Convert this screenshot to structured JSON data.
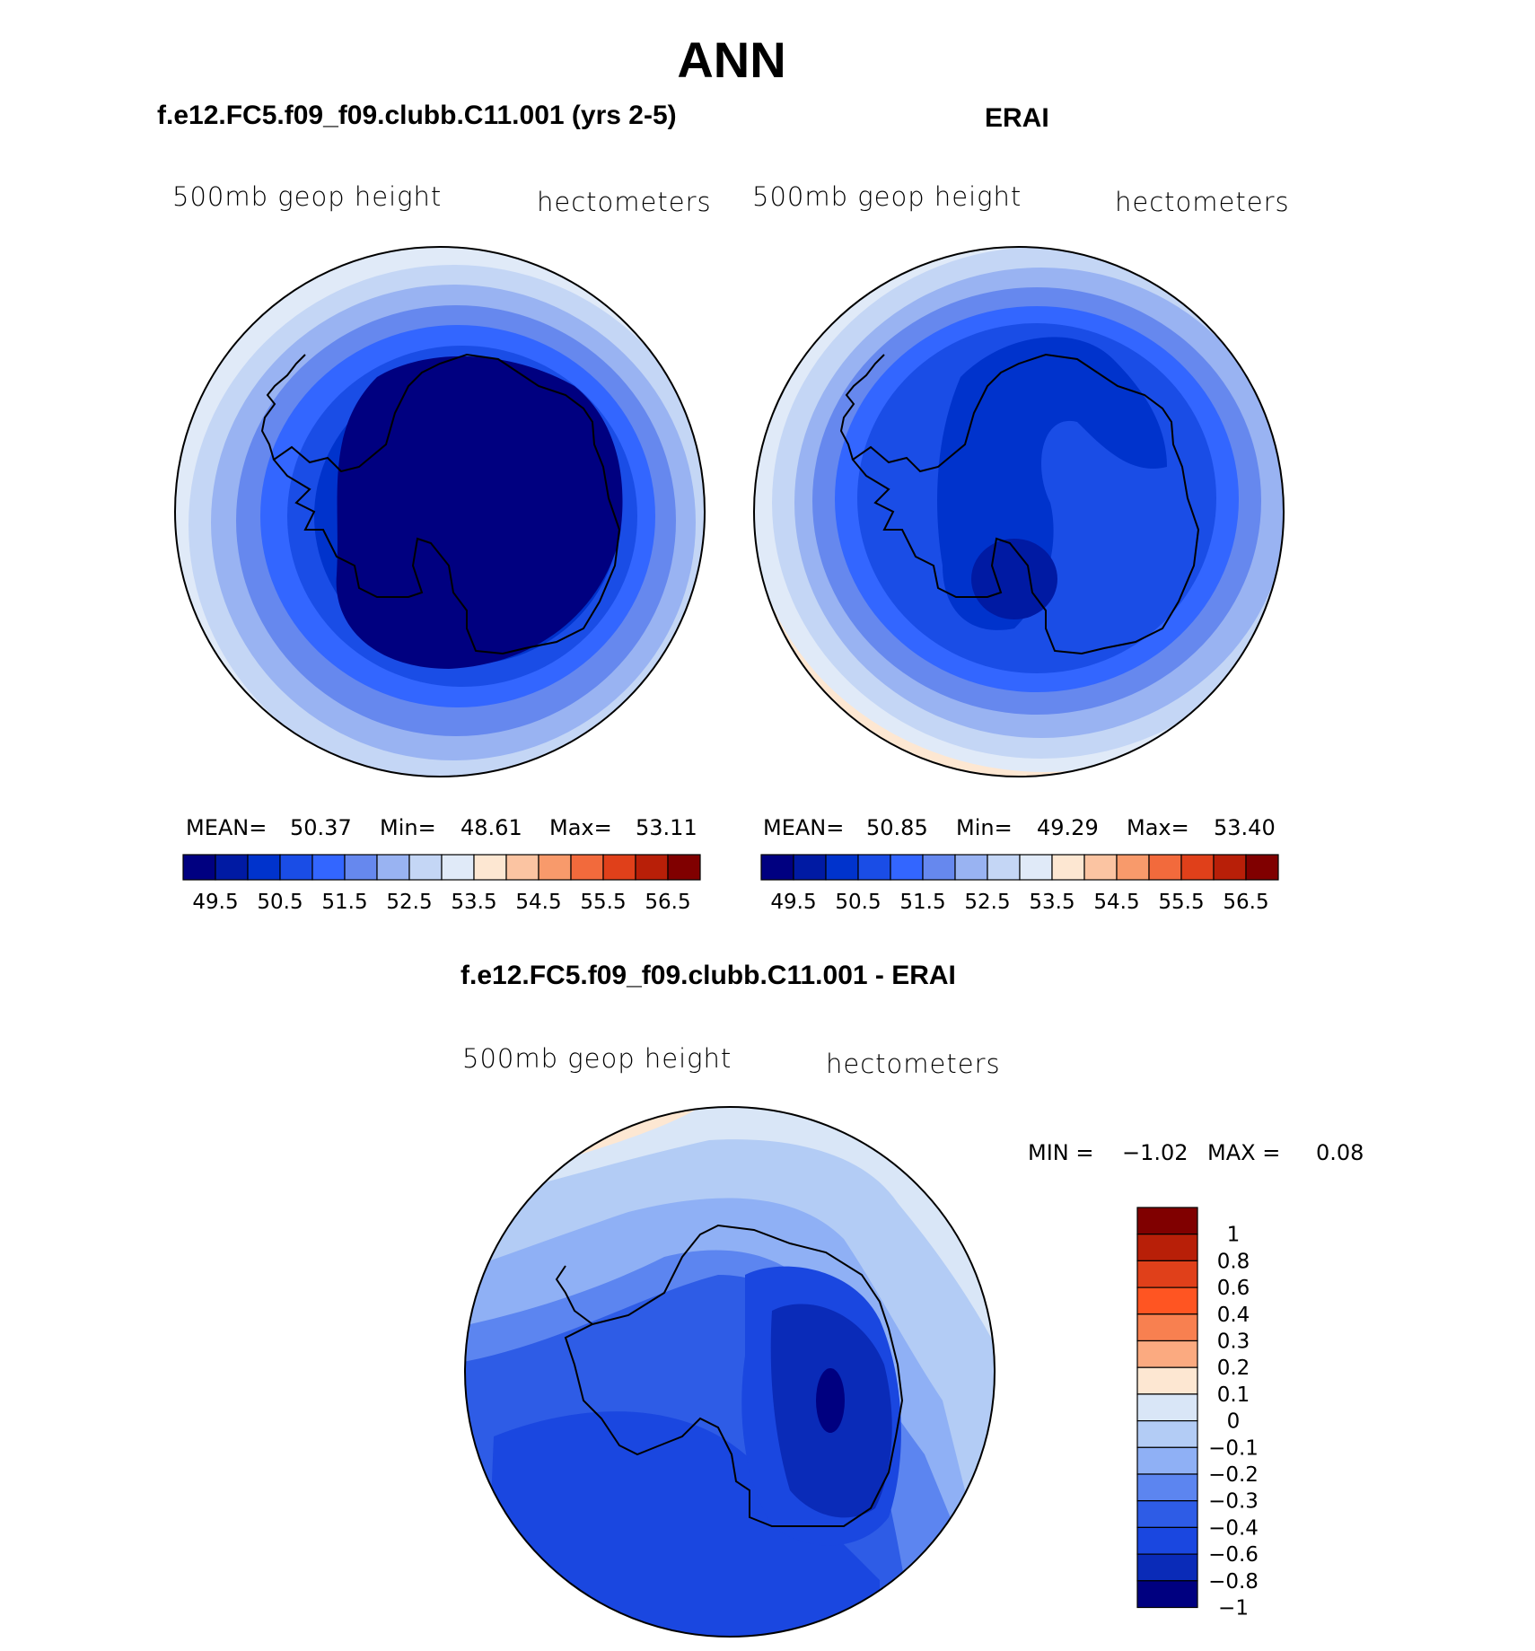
{
  "title": "ANN",
  "panels": [
    {
      "title": "f.e12.FC5.f09_f09.clubb.C11.001 (yrs 2-5)",
      "variable": "500mb geop height",
      "units": "hectometers",
      "stats": {
        "mean_label": "MEAN=",
        "mean": "50.37",
        "min_label": "Min=",
        "min": "48.61",
        "max_label": "Max=",
        "max": "53.11"
      }
    },
    {
      "title": "ERAI",
      "variable": "500mb geop height",
      "units": "hectometers",
      "stats": {
        "mean_label": "MEAN=",
        "mean": "50.85",
        "min_label": "Min=",
        "min": "49.29",
        "max_label": "Max=",
        "max": "53.40"
      }
    },
    {
      "title": "f.e12.FC5.f09_f09.clubb.C11.001 - ERAI",
      "variable": "500mb geop height",
      "units": "hectometers",
      "stats": {
        "min_label": "MIN =",
        "min": "−1.02",
        "max_label": "MAX =",
        "max": "0.08"
      }
    }
  ],
  "chart_data": [
    {
      "type": "heatmap",
      "projection": "south-polar-stereographic",
      "title": "f.e12.FC5.f09_f09.clubb.C11.001 (yrs 2-5)",
      "variable": "500mb geop height",
      "units": "hectometers",
      "mean": 50.37,
      "min": 48.61,
      "max": 53.11,
      "colorbar": {
        "tick_labels": [
          "49.5",
          "50.5",
          "51.5",
          "52.5",
          "53.5",
          "54.5",
          "55.5",
          "56.5"
        ],
        "colors": [
          "#000080",
          "#001aa3",
          "#0033cc",
          "#1a4de6",
          "#3366ff",
          "#6688ee",
          "#99b3f2",
          "#c4d6f5",
          "#e0eaf8",
          "#fde7d2",
          "#fbc4a2",
          "#f89a6b",
          "#f26a3c",
          "#e0401a",
          "#b81f08",
          "#800000"
        ]
      }
    },
    {
      "type": "heatmap",
      "projection": "south-polar-stereographic",
      "title": "ERAI",
      "variable": "500mb geop height",
      "units": "hectometers",
      "mean": 50.85,
      "min": 49.29,
      "max": 53.4,
      "colorbar": {
        "tick_labels": [
          "49.5",
          "50.5",
          "51.5",
          "52.5",
          "53.5",
          "54.5",
          "55.5",
          "56.5"
        ],
        "colors": [
          "#000080",
          "#001aa3",
          "#0033cc",
          "#1a4de6",
          "#3366ff",
          "#6688ee",
          "#99b3f2",
          "#c4d6f5",
          "#e0eaf8",
          "#fde7d2",
          "#fbc4a2",
          "#f89a6b",
          "#f26a3c",
          "#e0401a",
          "#b81f08",
          "#800000"
        ]
      }
    },
    {
      "type": "heatmap",
      "projection": "south-polar-stereographic",
      "title": "f.e12.FC5.f09_f09.clubb.C11.001 - ERAI",
      "variable": "500mb geop height",
      "units": "hectometers",
      "min": -1.02,
      "max": 0.08,
      "colorbar": {
        "tick_labels": [
          "1",
          "0.8",
          "0.6",
          "0.4",
          "0.3",
          "0.2",
          "0.1",
          "0",
          "−0.1",
          "−0.2",
          "−0.3",
          "−0.4",
          "−0.6",
          "−0.8",
          "−1"
        ],
        "colors": [
          "#800000",
          "#b81f08",
          "#e0401a",
          "#ff5522",
          "#f88050",
          "#fbaa80",
          "#fde7d2",
          "#d9e6f7",
          "#b3ccf5",
          "#8fb0f5",
          "#5c85f0",
          "#2e5ce6",
          "#1a47e0",
          "#0a2bb8",
          "#000080"
        ]
      }
    }
  ]
}
